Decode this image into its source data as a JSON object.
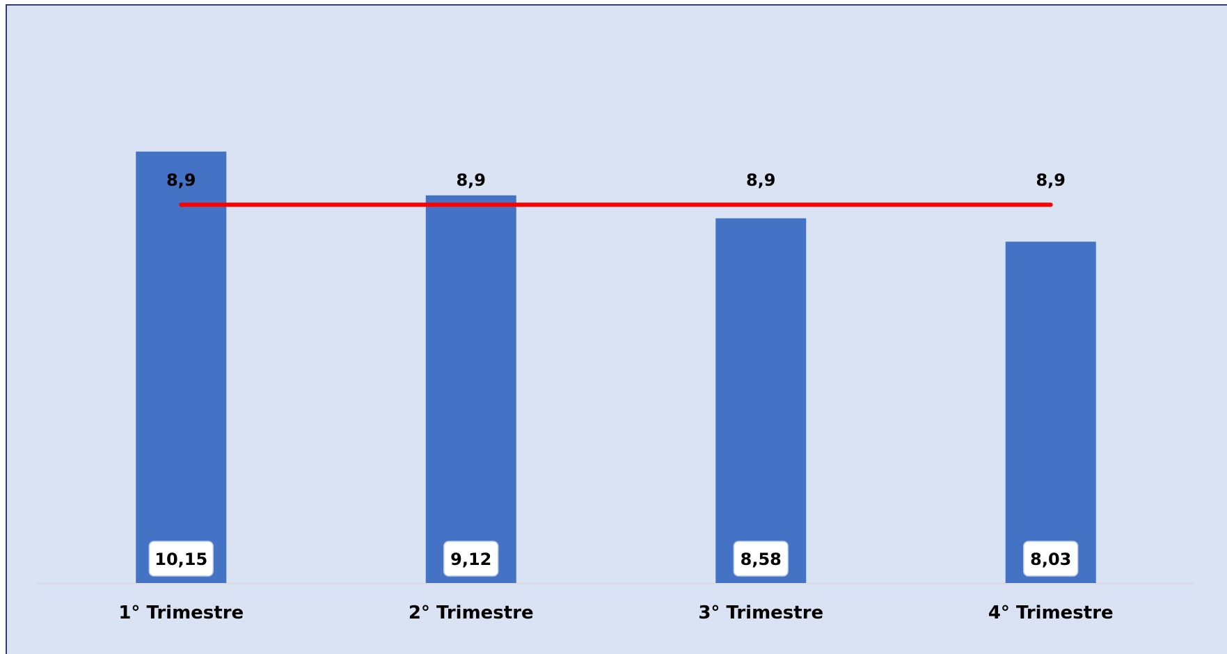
{
  "chart_data": {
    "type": "bar",
    "categories": [
      "1° Trimestre",
      "2° Trimestre",
      "3° Trimestre",
      "4° Trimestre"
    ],
    "series": [
      {
        "type": "bar",
        "values": [
          10.15,
          9.12,
          8.58,
          8.03
        ],
        "labels": [
          "10,15",
          "9,12",
          "8,58",
          "8,03"
        ],
        "color": "#4472c4"
      },
      {
        "type": "line",
        "values": [
          8.9,
          8.9,
          8.9,
          8.9
        ],
        "labels": [
          "8,9",
          "8,9",
          "8,9",
          "8,9"
        ],
        "color": "#ff0000"
      }
    ],
    "ylim": [
      0,
      10.9
    ],
    "grid": false,
    "legend": "none",
    "background": "#dae3f3",
    "axis_color": "#d9d9d9"
  }
}
